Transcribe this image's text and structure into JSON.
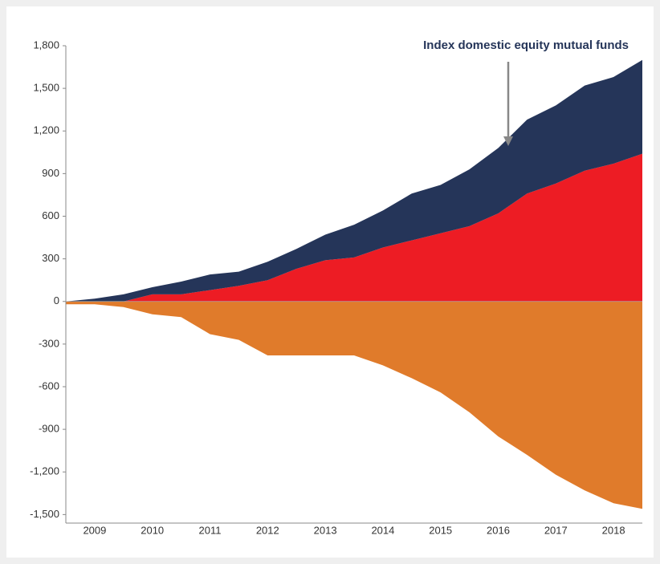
{
  "chart_data": {
    "type": "area",
    "annotation": "Index domestic equity mutual funds",
    "x": [
      2009,
      2009.5,
      2010,
      2010.5,
      2011,
      2011.5,
      2012,
      2012.5,
      2013,
      2013.5,
      2014,
      2014.5,
      2015,
      2015.5,
      2016,
      2016.5,
      2017,
      2017.5,
      2018,
      2018.5,
      2019
    ],
    "series": [
      {
        "color": "#ed1c24",
        "stack": "up",
        "values": [
          0,
          0,
          0,
          50,
          50,
          80,
          110,
          150,
          230,
          290,
          310,
          380,
          430,
          480,
          530,
          620,
          760,
          830,
          920,
          970,
          1040
        ]
      },
      {
        "name": "Index domestic equity mutual funds",
        "color": "#253559",
        "stack": "up",
        "values": [
          0,
          20,
          50,
          50,
          90,
          110,
          100,
          130,
          140,
          180,
          230,
          260,
          330,
          340,
          400,
          460,
          520,
          550,
          600,
          610,
          660
        ]
      },
      {
        "color": "#e07b2b",
        "stack": "down",
        "values": [
          -20,
          -20,
          -40,
          -90,
          -110,
          -230,
          -270,
          -380,
          -380,
          -380,
          -380,
          -450,
          -540,
          -640,
          -780,
          -950,
          -1080,
          -1220,
          -1330,
          -1420,
          -1460
        ]
      }
    ],
    "xlim": [
      2009,
      2019
    ],
    "xticks": [
      {
        "value": 2009.5,
        "label": "2009"
      },
      {
        "value": 2010.5,
        "label": "2010"
      },
      {
        "value": 2011.5,
        "label": "2011"
      },
      {
        "value": 2012.5,
        "label": "2012"
      },
      {
        "value": 2013.5,
        "label": "2013"
      },
      {
        "value": 2014.5,
        "label": "2014"
      },
      {
        "value": 2015.5,
        "label": "2015"
      },
      {
        "value": 2016.5,
        "label": "2016"
      },
      {
        "value": 2017.5,
        "label": "2017"
      },
      {
        "value": 2018.5,
        "label": "2018"
      }
    ],
    "ylim": [
      -1560,
      1800
    ],
    "yticks": [
      {
        "value": 1800,
        "label": "1,800"
      },
      {
        "value": 1500,
        "label": "1,500"
      },
      {
        "value": 1200,
        "label": "1,200"
      },
      900,
      600,
      300,
      0,
      -300,
      -600,
      -900,
      {
        "value": -1200,
        "label": "-1,200"
      },
      {
        "value": -1500,
        "label": "-1,500"
      }
    ],
    "grid": false
  }
}
